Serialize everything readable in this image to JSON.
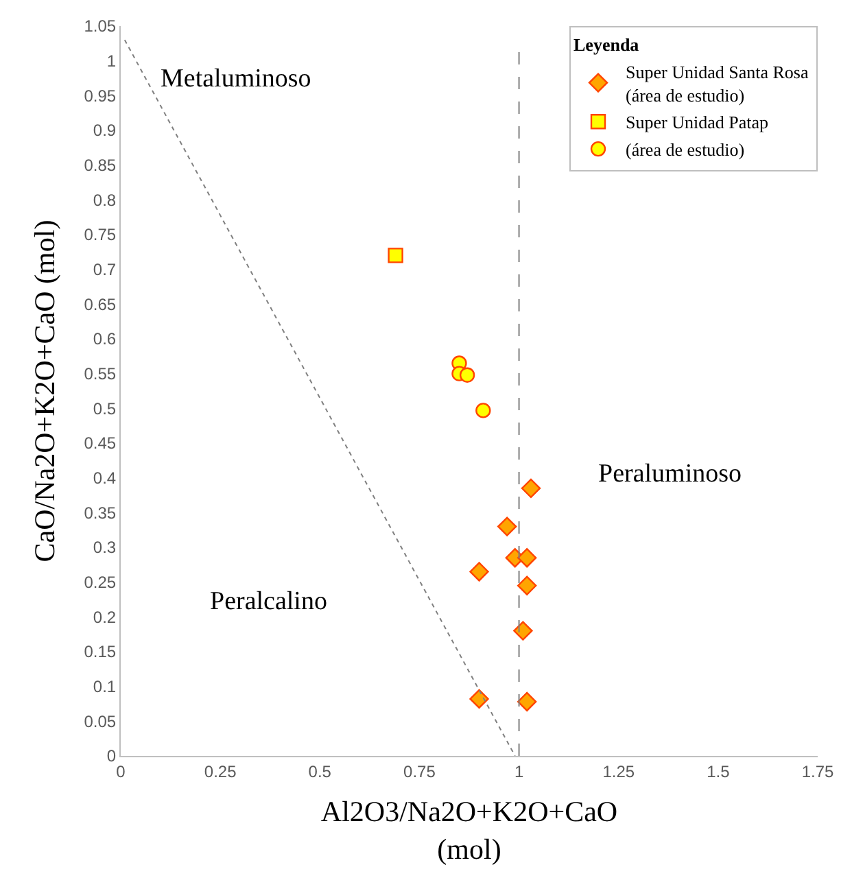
{
  "chart_data": {
    "type": "scatter",
    "xlabel": "Al2O3/Na2O+K2O+CaO\n(mol)",
    "ylabel": "CaO/Na2O+K2O+CaO (mol)",
    "legend_title": "Leyenda",
    "legend": "top right",
    "xlim": [
      0,
      1.75
    ],
    "xticks": [
      0,
      0.25,
      0.5,
      0.75,
      1,
      1.25,
      1.5,
      1.75
    ],
    "ylim": [
      0,
      1.05
    ],
    "yticks": [
      0,
      0.05,
      0.1,
      0.15,
      0.2,
      0.25,
      0.3,
      0.35,
      0.4,
      0.45,
      0.5,
      0.55,
      0.6,
      0.65,
      0.7,
      0.75,
      0.8,
      0.85,
      0.9,
      0.95,
      1,
      1.05
    ],
    "annotations": [
      "Metaluminoso",
      "Peraluminoso",
      "Peralcalino"
    ],
    "ref_lines": [
      {
        "axis": "x",
        "value": 1,
        "color": "#808080",
        "line_style": "dashed"
      }
    ],
    "series": [
      {
        "name": "Super Unidad Santa Rosa\n(área de estudio)",
        "marker": "diamond",
        "color": "#ffa500",
        "x": [
          1.03,
          0.97,
          0.99,
          1.02,
          0.9,
          1.02,
          1.01,
          0.9,
          1.02
        ],
        "values": [
          0.385,
          0.33,
          0.285,
          0.285,
          0.265,
          0.245,
          0.18,
          0.082,
          0.078
        ]
      },
      {
        "name": "Super Unidad Patap",
        "marker": "square",
        "color": "#ffff00",
        "x": [
          0.69
        ],
        "values": [
          0.72
        ]
      },
      {
        "name": "(área de estudio)",
        "marker": "circle",
        "color": "#ffff00",
        "x": [
          0.85,
          0.85,
          0.87,
          0.91
        ],
        "values": [
          0.565,
          0.55,
          0.548,
          0.497
        ]
      },
      {
        "type": "line",
        "color": "#808080",
        "line_style": "dotted",
        "x": [
          0.01,
          0.99
        ],
        "values": [
          1.03,
          0.0
        ]
      }
    ]
  }
}
